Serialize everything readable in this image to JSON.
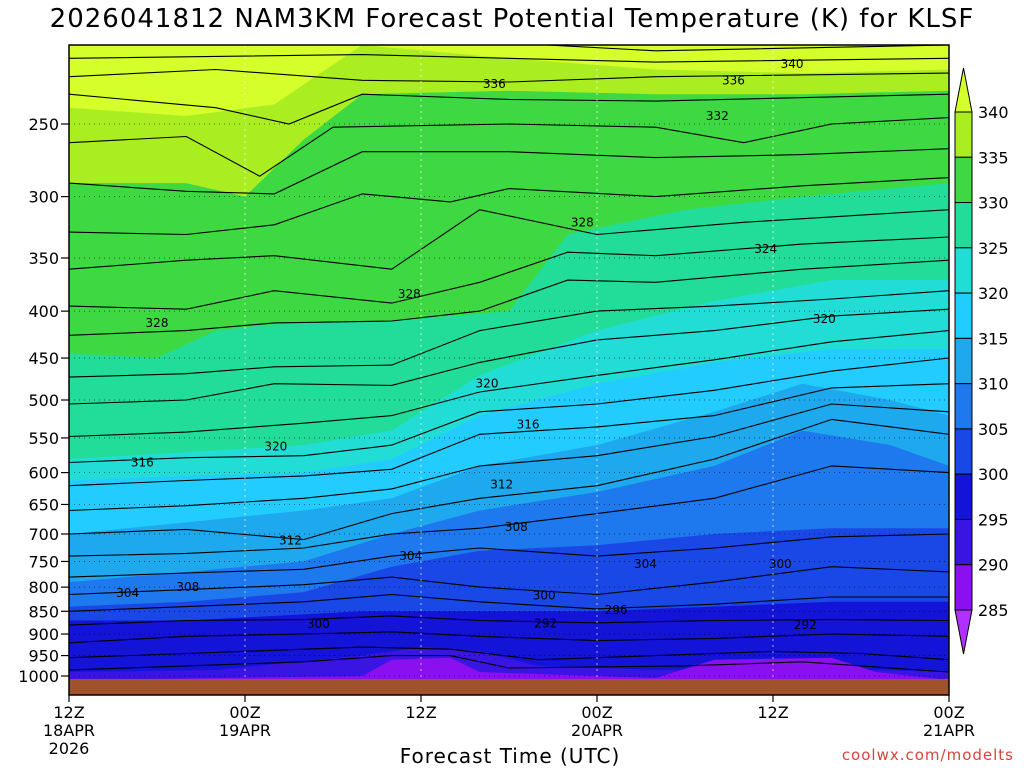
{
  "chart_data": {
    "type": "heatmap",
    "title": "2026041812 NAM3KM Forecast Potential Temperature (K) for KLSF",
    "xlabel": "Forecast Time (UTC)",
    "ylabel": "",
    "x_ticks": [
      {
        "label": "12Z",
        "sub": "18APR",
        "year": "2026",
        "hour": 0
      },
      {
        "label": "00Z",
        "sub": "19APR",
        "year": "",
        "hour": 12
      },
      {
        "label": "12Z",
        "sub": "",
        "year": "",
        "hour": 24
      },
      {
        "label": "00Z",
        "sub": "20APR",
        "year": "",
        "hour": 36
      },
      {
        "label": "12Z",
        "sub": "",
        "year": "",
        "hour": 48
      },
      {
        "label": "00Z",
        "sub": "21APR",
        "year": "",
        "hour": 60
      }
    ],
    "y_ticks": [
      "250",
      "300",
      "350",
      "400",
      "450",
      "500",
      "550",
      "600",
      "650",
      "700",
      "750",
      "800",
      "850",
      "900",
      "950",
      "1000"
    ],
    "y_log_scale": true,
    "y_range_hpa": [
      1000,
      200
    ],
    "colorbar": {
      "levels": [
        "340",
        "335",
        "330",
        "325",
        "320",
        "315",
        "310",
        "305",
        "300",
        "295",
        "290",
        "285"
      ],
      "colors": [
        "#d4ff2a",
        "#aaee22",
        "#3ed942",
        "#22dd9a",
        "#22ddd6",
        "#22ccff",
        "#1ea8ee",
        "#1e78ee",
        "#1a48e6",
        "#1414d8",
        "#3a14e0",
        "#8a10f0",
        "#b030ff"
      ]
    },
    "contour_labels": [
      {
        "text": "340",
        "hour": 49.3,
        "hpa": 215
      },
      {
        "text": "336",
        "hour": 29,
        "hpa": 226
      },
      {
        "text": "336",
        "hour": 45.3,
        "hpa": 224
      },
      {
        "text": "332",
        "hour": 44.2,
        "hpa": 245
      },
      {
        "text": "328",
        "hour": 35,
        "hpa": 320
      },
      {
        "text": "324",
        "hour": 47.5,
        "hpa": 342
      },
      {
        "text": "328",
        "hour": 23.2,
        "hpa": 383
      },
      {
        "text": "328",
        "hour": 6,
        "hpa": 412
      },
      {
        "text": "320",
        "hour": 51.5,
        "hpa": 408
      },
      {
        "text": "320",
        "hour": 28.5,
        "hpa": 480
      },
      {
        "text": "316",
        "hour": 31.3,
        "hpa": 532
      },
      {
        "text": "320",
        "hour": 14.1,
        "hpa": 562
      },
      {
        "text": "316",
        "hour": 5,
        "hpa": 585
      },
      {
        "text": "312",
        "hour": 29.5,
        "hpa": 618
      },
      {
        "text": "308",
        "hour": 30.5,
        "hpa": 688
      },
      {
        "text": "312",
        "hour": 15.1,
        "hpa": 712
      },
      {
        "text": "304",
        "hour": 23.3,
        "hpa": 740
      },
      {
        "text": "304",
        "hour": 39.3,
        "hpa": 755
      },
      {
        "text": "300",
        "hour": 48.5,
        "hpa": 755
      },
      {
        "text": "308",
        "hour": 8.1,
        "hpa": 800
      },
      {
        "text": "304",
        "hour": 4,
        "hpa": 812
      },
      {
        "text": "300",
        "hour": 32.4,
        "hpa": 817
      },
      {
        "text": "296",
        "hour": 37.3,
        "hpa": 847
      },
      {
        "text": "300",
        "hour": 17,
        "hpa": 878
      },
      {
        "text": "292",
        "hour": 32.5,
        "hpa": 877
      },
      {
        "text": "292",
        "hour": 50.2,
        "hpa": 880
      }
    ]
  },
  "credit": "coolwx.com/modelts"
}
